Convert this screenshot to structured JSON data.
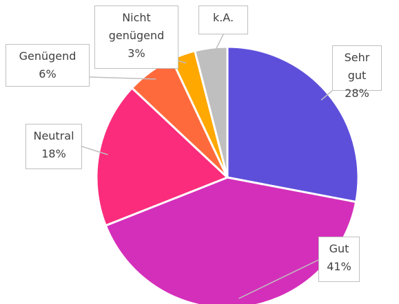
{
  "chart_data": {
    "type": "pie",
    "categories": [
      "Sehr gut",
      "Gut",
      "Neutral",
      "Genügend",
      "Nicht genügend",
      "k.A."
    ],
    "values": [
      28,
      41,
      18,
      6,
      3,
      4
    ],
    "value_labels": [
      "28%",
      "41%",
      "18%",
      "6%",
      "3%",
      null
    ],
    "colors": [
      "#5e4fdb",
      "#d42fba",
      "#fb2c7c",
      "#ff6a3d",
      "#ffa800",
      "#bfbfbf"
    ]
  }
}
